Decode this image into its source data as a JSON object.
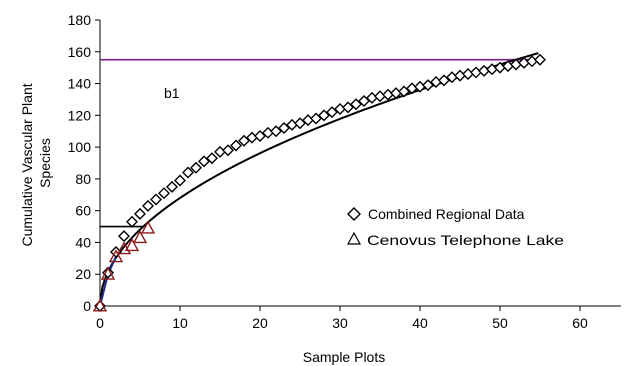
{
  "chart_data": {
    "type": "scatter",
    "xlabel": "Sample Plots",
    "ylabel_lines": [
      "Cumulative Vascular Plant",
      "Species"
    ],
    "xlim": [
      0,
      60
    ],
    "ylim": [
      0,
      180
    ],
    "x_ticks": [
      0,
      10,
      20,
      30,
      40,
      50,
      60
    ],
    "y_ticks": [
      0,
      20,
      40,
      60,
      80,
      100,
      120,
      140,
      160,
      180
    ],
    "grid": false,
    "legend_position": "right",
    "annotation": "b1",
    "series": [
      {
        "name": "Combined Regional Data",
        "marker": "diamond",
        "color": "#000000",
        "x": [
          0,
          1,
          2,
          3,
          4,
          5,
          6,
          7,
          8,
          9,
          10,
          11,
          12,
          13,
          14,
          15,
          16,
          17,
          18,
          19,
          20,
          21,
          22,
          23,
          24,
          25,
          26,
          27,
          28,
          29,
          30,
          31,
          32,
          33,
          34,
          35,
          36,
          37,
          38,
          39,
          40,
          41,
          42,
          43,
          44,
          45,
          46,
          47,
          48,
          49,
          50,
          51,
          52,
          53,
          54,
          55
        ],
        "y": [
          0,
          21,
          34,
          44,
          53,
          58,
          63,
          67,
          71,
          75,
          79,
          84,
          87,
          91,
          93,
          97,
          98,
          101,
          104,
          106,
          107,
          109,
          110,
          112,
          114,
          115,
          117,
          118,
          120,
          122,
          124,
          125,
          127,
          129,
          131,
          132,
          133,
          134,
          135,
          137,
          138,
          139,
          141,
          142,
          144,
          145,
          146,
          147,
          148,
          149,
          150,
          151,
          152,
          153,
          154,
          155
        ]
      },
      {
        "name": "Cenovus Telephone Lake",
        "marker": "triangle",
        "color": "#8b1a1a",
        "x": [
          0,
          1,
          2,
          3,
          4,
          5,
          6
        ],
        "y": [
          0,
          20,
          31,
          36,
          38,
          43,
          49
        ]
      }
    ],
    "fit_curve": {
      "color": "#000000",
      "form": "power",
      "a": 21.5,
      "b": 0.5,
      "x_range": [
        0.3,
        55
      ]
    },
    "connector_line": {
      "color": "#1f2f8a",
      "x": [
        0,
        1,
        2
      ],
      "y": [
        0,
        20,
        31
      ]
    },
    "reference_lines": [
      {
        "orientation": "horizontal",
        "y": 155,
        "x_range": [
          0,
          55
        ],
        "color": "#7b1f8a"
      },
      {
        "orientation": "horizontal",
        "y": 50,
        "x_range": [
          0,
          5.5
        ],
        "color": "#000000"
      }
    ]
  }
}
